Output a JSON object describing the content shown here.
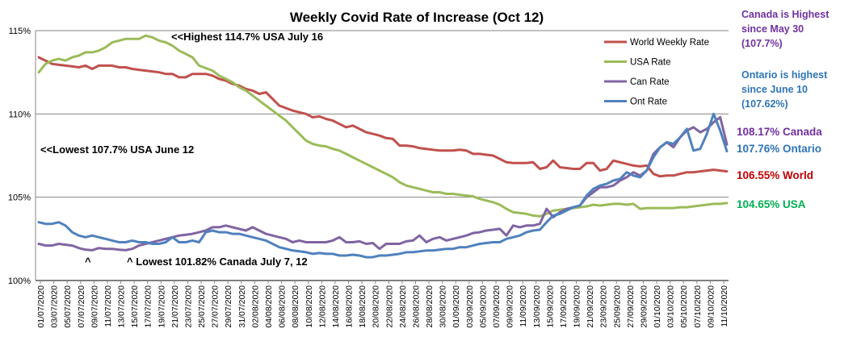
{
  "chart_data": {
    "type": "line",
    "title": "Weekly Covid Rate of Increase (Oct 12)",
    "xlabel": "",
    "ylabel": "",
    "ylim": [
      100,
      115
    ],
    "yticks": [
      "100%",
      "105%",
      "110%",
      "115%"
    ],
    "grid": "horizontal",
    "legend_position": "top-right",
    "x_tick_labels": [
      "01/07/2020",
      "03/07/2020",
      "05/07/2020",
      "07/07/2020",
      "09/07/2020",
      "11/07/2020",
      "13/07/2020",
      "15/07/2020",
      "17/07/2020",
      "19/07/2020",
      "21/07/2020",
      "23/07/2020",
      "25/07/2020",
      "27/07/2020",
      "29/07/2020",
      "31/07/2020",
      "02/08/2020",
      "04/08/2020",
      "06/08/2020",
      "08/08/2020",
      "10/08/2020",
      "12/08/2020",
      "14/08/2020",
      "16/08/2020",
      "18/08/2020",
      "20/08/2020",
      "22/08/2020",
      "24/08/2020",
      "26/08/2020",
      "28/08/2020",
      "30/08/2020",
      "01/09/2020",
      "03/09/2020",
      "05/09/2020",
      "07/09/2020",
      "09/09/2020",
      "11/09/2020",
      "13/09/2020",
      "15/09/2020",
      "17/09/2020",
      "19/09/2020",
      "21/09/2020",
      "23/09/2020",
      "25/09/2020",
      "27/09/2020",
      "29/09/2020",
      "01/10/2020",
      "03/10/2020",
      "05/10/2020",
      "07/10/2020",
      "09/10/2020",
      "11/10/2020"
    ],
    "series": [
      {
        "name": "World Weekly Rate",
        "color": "#c0504d",
        "values": [
          113.4,
          113.2,
          113.0,
          112.95,
          112.9,
          112.85,
          112.8,
          112.9,
          112.7,
          112.9,
          112.9,
          112.9,
          112.8,
          112.8,
          112.7,
          112.65,
          112.6,
          112.55,
          112.5,
          112.4,
          112.4,
          112.2,
          112.2,
          112.4,
          112.4,
          112.4,
          112.3,
          112.1,
          112.0,
          111.8,
          111.7,
          111.5,
          111.4,
          111.2,
          111.3,
          110.9,
          110.5,
          110.35,
          110.2,
          110.1,
          110.0,
          109.8,
          109.85,
          109.7,
          109.6,
          109.4,
          109.2,
          109.3,
          109.1,
          108.9,
          108.8,
          108.7,
          108.55,
          108.5,
          108.1,
          108.1,
          108.05,
          107.95,
          107.9,
          107.85,
          107.8,
          107.8,
          107.8,
          107.85,
          107.8,
          107.6,
          107.6,
          107.55,
          107.5,
          107.3,
          107.1,
          107.05,
          107.05,
          107.05,
          107.1,
          106.7,
          106.8,
          107.2,
          106.8,
          106.75,
          106.7,
          106.7,
          107.05,
          107.05,
          106.6,
          106.7,
          107.2,
          107.1,
          107.0,
          106.9,
          106.85,
          106.9,
          106.4,
          106.25,
          106.3,
          106.3,
          106.4,
          106.5,
          106.5,
          106.55,
          106.6,
          106.65,
          106.6,
          106.55
        ]
      },
      {
        "name": "USA Rate",
        "color": "#9bbb59",
        "values": [
          112.5,
          113.0,
          113.2,
          113.3,
          113.2,
          113.4,
          113.5,
          113.7,
          113.7,
          113.8,
          114.0,
          114.3,
          114.4,
          114.5,
          114.5,
          114.5,
          114.7,
          114.6,
          114.4,
          114.3,
          114.1,
          113.8,
          113.6,
          113.4,
          112.9,
          112.75,
          112.6,
          112.3,
          112.1,
          111.9,
          111.6,
          111.4,
          111.1,
          110.8,
          110.5,
          110.2,
          109.9,
          109.6,
          109.2,
          108.8,
          108.4,
          108.2,
          108.1,
          108.05,
          107.9,
          107.8,
          107.6,
          107.4,
          107.2,
          107.0,
          106.8,
          106.6,
          106.4,
          106.2,
          105.9,
          105.7,
          105.6,
          105.5,
          105.4,
          105.3,
          105.3,
          105.2,
          105.2,
          105.15,
          105.1,
          105.05,
          104.9,
          104.8,
          104.7,
          104.55,
          104.3,
          104.1,
          104.05,
          104.0,
          103.9,
          103.85,
          104.0,
          104.2,
          104.25,
          104.3,
          104.35,
          104.4,
          104.45,
          104.55,
          104.5,
          104.55,
          104.6,
          104.6,
          104.55,
          104.6,
          104.3,
          104.35,
          104.35,
          104.35,
          104.35,
          104.35,
          104.4,
          104.4,
          104.45,
          104.5,
          104.55,
          104.6,
          104.6,
          104.65
        ]
      },
      {
        "name": "Can Rate",
        "color": "#8064a2",
        "values": [
          102.2,
          102.1,
          102.1,
          102.2,
          102.15,
          102.1,
          101.95,
          101.85,
          101.82,
          101.95,
          101.9,
          101.9,
          101.85,
          101.82,
          101.9,
          102.1,
          102.2,
          102.3,
          102.4,
          102.5,
          102.6,
          102.7,
          102.75,
          102.8,
          102.9,
          103.0,
          103.2,
          103.2,
          103.3,
          103.2,
          103.1,
          103.0,
          103.2,
          103.0,
          102.8,
          102.7,
          102.6,
          102.5,
          102.3,
          102.4,
          102.3,
          102.3,
          102.3,
          102.3,
          102.4,
          102.6,
          102.3,
          102.3,
          102.35,
          102.2,
          102.25,
          101.9,
          102.2,
          102.2,
          102.2,
          102.35,
          102.4,
          102.7,
          102.3,
          102.5,
          102.6,
          102.4,
          102.5,
          102.6,
          102.7,
          102.85,
          102.9,
          103.0,
          103.05,
          103.1,
          102.7,
          103.3,
          103.2,
          103.3,
          103.3,
          103.4,
          104.3,
          103.8,
          104.1,
          104.3,
          104.4,
          104.5,
          105.0,
          105.3,
          105.6,
          105.6,
          105.7,
          106.0,
          106.2,
          106.5,
          106.3,
          106.6,
          107.6,
          108.0,
          108.3,
          108.0,
          108.6,
          109.0,
          109.2,
          108.9,
          109.1,
          109.5,
          109.8,
          108.17
        ]
      },
      {
        "name": "Ont Rate",
        "color": "#4f81bd",
        "values": [
          103.5,
          103.4,
          103.4,
          103.5,
          103.3,
          102.9,
          102.7,
          102.6,
          102.7,
          102.6,
          102.5,
          102.4,
          102.3,
          102.3,
          102.4,
          102.3,
          102.3,
          102.2,
          102.2,
          102.3,
          102.6,
          102.3,
          102.3,
          102.4,
          102.3,
          102.9,
          103.0,
          102.9,
          102.9,
          102.8,
          102.8,
          102.7,
          102.6,
          102.5,
          102.4,
          102.2,
          102.0,
          101.9,
          101.8,
          101.75,
          101.7,
          101.6,
          101.65,
          101.6,
          101.6,
          101.5,
          101.5,
          101.55,
          101.5,
          101.4,
          101.4,
          101.5,
          101.5,
          101.55,
          101.6,
          101.7,
          101.7,
          101.75,
          101.8,
          101.8,
          101.85,
          101.9,
          101.9,
          102.0,
          102.0,
          102.1,
          102.2,
          102.25,
          102.3,
          102.3,
          102.5,
          102.6,
          102.7,
          102.9,
          103.0,
          103.05,
          103.5,
          103.9,
          104.0,
          104.2,
          104.4,
          104.5,
          105.1,
          105.5,
          105.7,
          105.8,
          106.0,
          106.1,
          106.5,
          106.3,
          106.2,
          106.6,
          107.4,
          108.0,
          108.3,
          108.2,
          108.6,
          109.1,
          107.8,
          107.9,
          108.8,
          110.0,
          109.0,
          107.76
        ]
      }
    ],
    "annotations": [
      "<<Highest 114.7% USA July 16",
      "<<Lowest 107.7% USA June 12",
      "^",
      "^ Lowest 101.82% Canada July 7, 12"
    ],
    "side_notes": [
      {
        "lines": [
          "Canada is Highest",
          "since May 30",
          "(107.7%)"
        ],
        "color": "#7030a0"
      },
      {
        "lines": [
          "Ontario is highest",
          "since June 10",
          "(107.62%)"
        ],
        "color": "#2e75b6"
      }
    ],
    "end_labels": [
      {
        "text": "108.17% Canada",
        "color": "#7030a0"
      },
      {
        "text": "107.76% Ontario",
        "color": "#2e75b6"
      },
      {
        "text": "106.55% World",
        "color": "#c00000"
      },
      {
        "text": "104.65% USA",
        "color": "#00b050"
      }
    ]
  }
}
